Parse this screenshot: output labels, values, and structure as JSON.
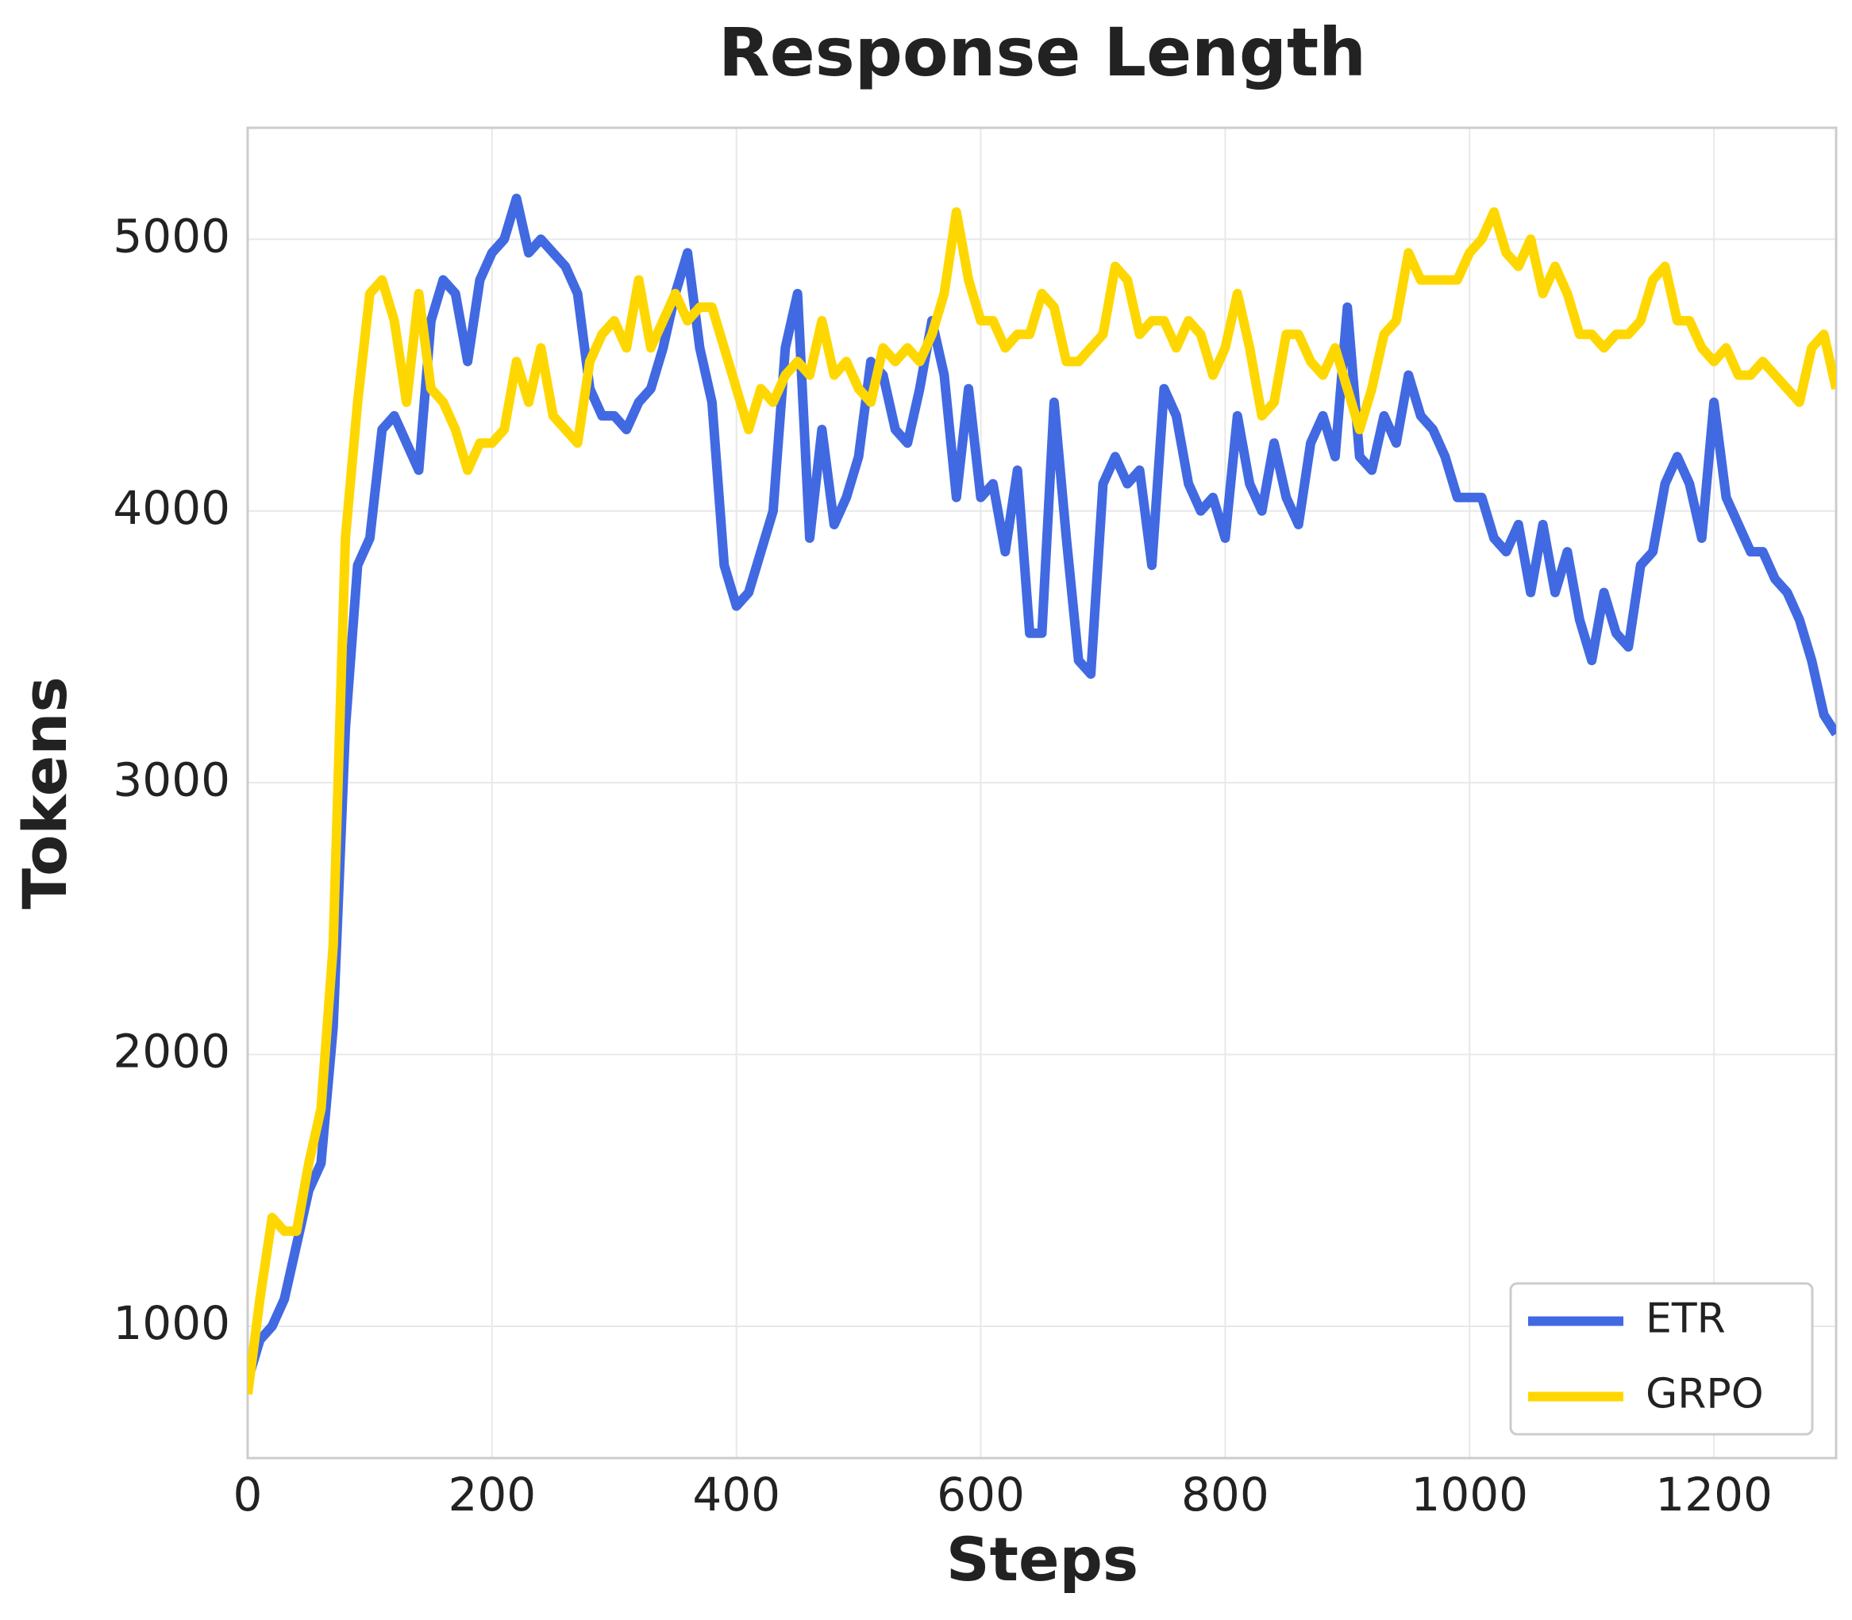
{
  "chart_data": {
    "type": "line",
    "title": "Response Length",
    "x_label": "Steps",
    "y_label": "Tokens",
    "x": [
      0,
      10,
      20,
      30,
      40,
      50,
      60,
      70,
      80,
      90,
      100,
      110,
      120,
      130,
      140,
      150,
      160,
      170,
      180,
      190,
      200,
      210,
      220,
      230,
      240,
      250,
      260,
      270,
      280,
      290,
      300,
      310,
      320,
      330,
      340,
      350,
      360,
      370,
      380,
      390,
      400,
      410,
      420,
      430,
      440,
      450,
      460,
      470,
      480,
      490,
      500,
      510,
      520,
      530,
      540,
      550,
      560,
      570,
      580,
      590,
      600,
      610,
      620,
      630,
      640,
      650,
      660,
      670,
      680,
      690,
      700,
      710,
      720,
      730,
      740,
      750,
      760,
      770,
      780,
      790,
      800,
      810,
      820,
      830,
      840,
      850,
      860,
      870,
      880,
      890,
      900,
      910,
      920,
      930,
      940,
      950,
      960,
      970,
      980,
      990,
      1000,
      1010,
      1020,
      1030,
      1040,
      1050,
      1060,
      1070,
      1080,
      1090,
      1100,
      1110,
      1120,
      1130,
      1140,
      1150,
      1160,
      1170,
      1180,
      1190,
      1200,
      1210,
      1220,
      1230,
      1240,
      1250,
      1260,
      1270,
      1280,
      1290,
      1300
    ],
    "series": [
      {
        "name": "ETR",
        "color": "#4169e1",
        "values": [
          800,
          950,
          1000,
          1100,
          1300,
          1500,
          1600,
          2100,
          3200,
          3800,
          3900,
          4300,
          4350,
          4250,
          4150,
          4700,
          4850,
          4800,
          4550,
          4850,
          4950,
          5000,
          5150,
          4950,
          5000,
          4950,
          4900,
          4800,
          4450,
          4350,
          4350,
          4300,
          4400,
          4450,
          4600,
          4800,
          4950,
          4600,
          4400,
          3800,
          3650,
          3700,
          3850,
          4000,
          4600,
          4800,
          3900,
          4300,
          3950,
          4050,
          4200,
          4550,
          4500,
          4300,
          4250,
          4450,
          4700,
          4500,
          4050,
          4450,
          4050,
          4100,
          3850,
          4150,
          3550,
          3550,
          4400,
          3900,
          3450,
          3400,
          4100,
          4200,
          4100,
          4150,
          3800,
          4450,
          4350,
          4100,
          4000,
          4050,
          3900,
          4350,
          4100,
          4000,
          4250,
          4050,
          3950,
          4250,
          4350,
          4200,
          4750,
          4200,
          4150,
          4350,
          4250,
          4500,
          4350,
          4300,
          4200,
          4050,
          4050,
          4050,
          3900,
          3850,
          3950,
          3700,
          3950,
          3700,
          3850,
          3600,
          3450,
          3700,
          3550,
          3500,
          3800,
          3850,
          4100,
          4200,
          4100,
          3900,
          4400,
          4050,
          3950,
          3850,
          3850,
          3750,
          3700,
          3600,
          3450,
          3250,
          3180
        ]
      },
      {
        "name": "GRPO",
        "color": "#ffd700",
        "values": [
          750,
          1100,
          1400,
          1350,
          1350,
          1600,
          1800,
          2400,
          3900,
          4400,
          4800,
          4850,
          4700,
          4400,
          4800,
          4450,
          4400,
          4300,
          4150,
          4250,
          4250,
          4300,
          4550,
          4400,
          4600,
          4350,
          4300,
          4250,
          4550,
          4650,
          4700,
          4600,
          4850,
          4600,
          4700,
          4800,
          4700,
          4750,
          4750,
          4600,
          4450,
          4300,
          4450,
          4400,
          4500,
          4550,
          4500,
          4700,
          4500,
          4550,
          4450,
          4400,
          4600,
          4550,
          4600,
          4550,
          4650,
          4800,
          5100,
          4850,
          4700,
          4700,
          4600,
          4650,
          4650,
          4800,
          4750,
          4550,
          4550,
          4600,
          4650,
          4900,
          4850,
          4650,
          4700,
          4700,
          4600,
          4700,
          4650,
          4500,
          4600,
          4800,
          4600,
          4350,
          4400,
          4650,
          4650,
          4550,
          4500,
          4600,
          4450,
          4300,
          4450,
          4650,
          4700,
          4950,
          4850,
          4850,
          4850,
          4850,
          4950,
          5000,
          5100,
          4950,
          4900,
          5000,
          4800,
          4900,
          4800,
          4650,
          4650,
          4600,
          4650,
          4650,
          4700,
          4850,
          4900,
          4700,
          4700,
          4600,
          4550,
          4600,
          4500,
          4500,
          4550,
          4500,
          4450,
          4400,
          4600,
          4650,
          4450
        ]
      }
    ],
    "xlim": [
      0,
      1300
    ],
    "ylim": [
      515,
      5410
    ],
    "xticks": [
      0,
      200,
      400,
      600,
      800,
      1000,
      1200
    ],
    "yticks": [
      1000,
      2000,
      3000,
      4000,
      5000
    ],
    "grid": true,
    "legend": "lower right"
  }
}
